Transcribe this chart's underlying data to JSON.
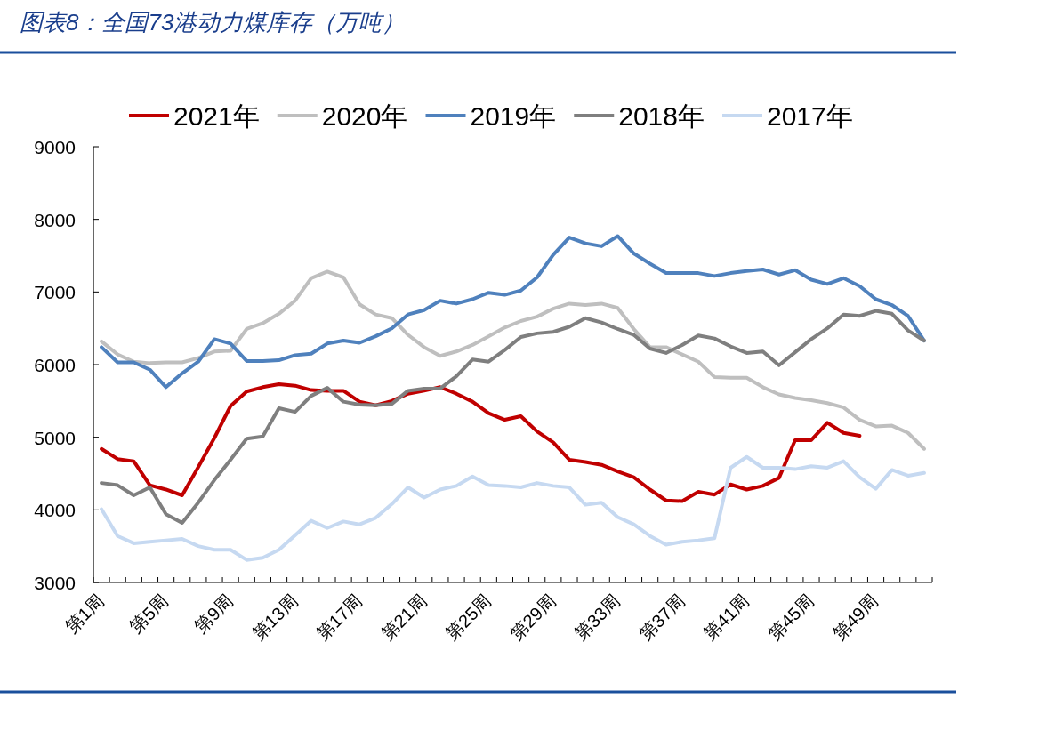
{
  "chart_data": {
    "type": "line",
    "title": "图表8：全国73港动力煤库存（万吨）",
    "categories": [
      "第1周",
      null,
      null,
      null,
      "第5周",
      null,
      null,
      null,
      "第9周",
      null,
      null,
      null,
      "第13周",
      null,
      null,
      null,
      "第17周",
      null,
      null,
      null,
      "第21周",
      null,
      null,
      null,
      "第25周",
      null,
      null,
      null,
      "第29周",
      null,
      null,
      null,
      "第33周",
      null,
      null,
      null,
      "第37周",
      null,
      null,
      null,
      "第41周",
      null,
      null,
      null,
      "第45周",
      null,
      null,
      null,
      "第49周",
      null,
      null,
      null
    ],
    "series": [
      {
        "name": "2021年",
        "color": "#c00000",
        "values": [
          4840,
          4700,
          4670,
          4340,
          4280,
          4200,
          4590,
          4990,
          5430,
          5630,
          5690,
          5730,
          5710,
          5650,
          5640,
          5640,
          5490,
          5440,
          5500,
          5600,
          5640,
          5690,
          5600,
          5490,
          5330,
          5240,
          5290,
          5080,
          4930,
          4690,
          4660,
          4620,
          4530,
          4450,
          4280,
          4130,
          4120,
          4250,
          4210,
          4350,
          4280,
          4330,
          4440,
          4960,
          4960,
          5200,
          5060,
          5020,
          null,
          null,
          null,
          null
        ]
      },
      {
        "name": "2020年",
        "color": "#bfbfbf",
        "values": [
          6320,
          6140,
          6040,
          6020,
          6030,
          6030,
          6090,
          6180,
          6190,
          6490,
          6570,
          6700,
          6880,
          7190,
          7280,
          7200,
          6830,
          6690,
          6640,
          6410,
          6240,
          6120,
          6180,
          6270,
          6390,
          6510,
          6600,
          6660,
          6770,
          6840,
          6820,
          6840,
          6780,
          6490,
          6240,
          6240,
          6140,
          6040,
          5830,
          5820,
          5820,
          5690,
          5590,
          5540,
          5510,
          5470,
          5410,
          5240,
          5150,
          5160,
          5060,
          4840
        ]
      },
      {
        "name": "2019年",
        "color": "#4f81bd",
        "values": [
          6240,
          6030,
          6030,
          5930,
          5690,
          5880,
          6040,
          6350,
          6290,
          6050,
          6050,
          6060,
          6130,
          6150,
          6290,
          6330,
          6300,
          6390,
          6500,
          6690,
          6750,
          6880,
          6840,
          6900,
          6990,
          6960,
          7020,
          7200,
          7510,
          7750,
          7670,
          7630,
          7770,
          7530,
          7390,
          7260,
          7260,
          7260,
          7220,
          7260,
          7290,
          7310,
          7240,
          7300,
          7170,
          7110,
          7190,
          7080,
          6900,
          6820,
          6670,
          6330
        ]
      },
      {
        "name": "2018年",
        "color": "#7f7f7f",
        "values": [
          4370,
          4340,
          4200,
          4310,
          3940,
          3820,
          4100,
          4410,
          4690,
          4980,
          5010,
          5400,
          5350,
          5570,
          5680,
          5490,
          5450,
          5440,
          5460,
          5640,
          5670,
          5670,
          5840,
          6070,
          6040,
          6200,
          6380,
          6430,
          6450,
          6520,
          6640,
          6580,
          6490,
          6410,
          6220,
          6160,
          6270,
          6400,
          6360,
          6250,
          6160,
          6180,
          5990,
          6170,
          6350,
          6500,
          6690,
          6670,
          6740,
          6700,
          6470,
          6330
        ]
      },
      {
        "name": "2017年",
        "color": "#c6d9f1",
        "values": [
          4010,
          3640,
          3540,
          3560,
          3580,
          3600,
          3500,
          3450,
          3450,
          3310,
          3340,
          3450,
          3650,
          3850,
          3750,
          3840,
          3800,
          3890,
          4080,
          4310,
          4170,
          4280,
          4330,
          4460,
          4340,
          4330,
          4310,
          4370,
          4330,
          4310,
          4070,
          4100,
          3900,
          3800,
          3640,
          3520,
          3560,
          3580,
          3610,
          4580,
          4730,
          4580,
          4580,
          4560,
          4600,
          4580,
          4670,
          4450,
          4290,
          4550,
          4470,
          4510
        ]
      }
    ],
    "ylim": [
      3000,
      9000
    ],
    "yticks": [
      3000,
      4000,
      5000,
      6000,
      7000,
      8000,
      9000
    ],
    "legend": "top",
    "grid": false,
    "marker": "none",
    "line_style": "solid"
  }
}
